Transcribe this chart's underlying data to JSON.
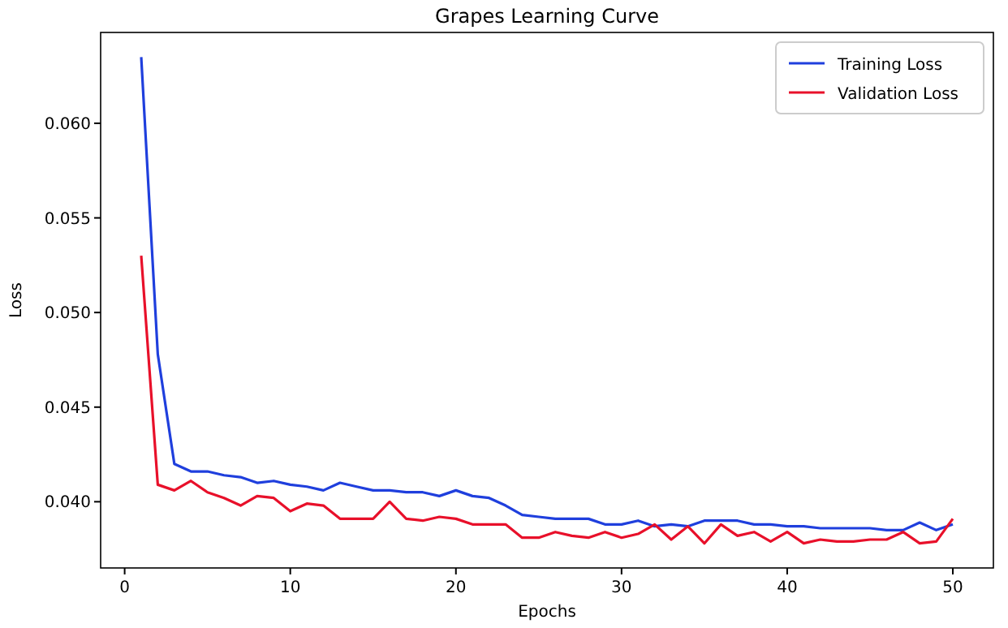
{
  "chart_data": {
    "type": "line",
    "title": "Grapes Learning Curve",
    "xlabel": "Epochs",
    "ylabel": "Loss",
    "x": [
      1,
      2,
      3,
      4,
      5,
      6,
      7,
      8,
      9,
      10,
      11,
      12,
      13,
      14,
      15,
      16,
      17,
      18,
      19,
      20,
      21,
      22,
      23,
      24,
      25,
      26,
      27,
      28,
      29,
      30,
      31,
      32,
      33,
      34,
      35,
      36,
      37,
      38,
      39,
      40,
      41,
      42,
      43,
      44,
      45,
      46,
      47,
      48,
      49,
      50
    ],
    "series": [
      {
        "name": "Training Loss",
        "color": "#1f3fdd",
        "values": [
          0.0635,
          0.0478,
          0.042,
          0.0416,
          0.0416,
          0.0414,
          0.0413,
          0.041,
          0.0411,
          0.0409,
          0.0408,
          0.0406,
          0.041,
          0.0408,
          0.0406,
          0.0406,
          0.0405,
          0.0405,
          0.0403,
          0.0406,
          0.0403,
          0.0402,
          0.0398,
          0.0393,
          0.0392,
          0.0391,
          0.0391,
          0.0391,
          0.0388,
          0.0388,
          0.039,
          0.0387,
          0.0388,
          0.0387,
          0.039,
          0.039,
          0.039,
          0.0388,
          0.0388,
          0.0387,
          0.0387,
          0.0386,
          0.0386,
          0.0386,
          0.0386,
          0.0385,
          0.0385,
          0.0389,
          0.0385,
          0.0388
        ]
      },
      {
        "name": "Validation Loss",
        "color": "#e8102a",
        "values": [
          0.053,
          0.0409,
          0.0406,
          0.0411,
          0.0405,
          0.0402,
          0.0398,
          0.0403,
          0.0402,
          0.0395,
          0.0399,
          0.0398,
          0.0391,
          0.0391,
          0.0391,
          0.04,
          0.0391,
          0.039,
          0.0392,
          0.0391,
          0.0388,
          0.0388,
          0.0388,
          0.0381,
          0.0381,
          0.0384,
          0.0382,
          0.0381,
          0.0384,
          0.0381,
          0.0383,
          0.0388,
          0.038,
          0.0387,
          0.0378,
          0.0388,
          0.0382,
          0.0384,
          0.0379,
          0.0384,
          0.0378,
          0.038,
          0.0379,
          0.0379,
          0.038,
          0.038,
          0.0384,
          0.0378,
          0.0379,
          0.0391
        ]
      }
    ],
    "xlim": [
      -1.45,
      52.45
    ],
    "xticks": [
      0,
      10,
      20,
      30,
      40,
      50
    ],
    "ylim": [
      0.0365,
      0.0648
    ],
    "yticks": [
      {
        "value": 0.04,
        "label": "0.040"
      },
      {
        "value": 0.045,
        "label": "0.045"
      },
      {
        "value": 0.05,
        "label": "0.050"
      },
      {
        "value": 0.055,
        "label": "0.055"
      },
      {
        "value": 0.06,
        "label": "0.060"
      }
    ],
    "legend": "top right",
    "grid": false,
    "marker": "none",
    "line_style": "solid"
  }
}
